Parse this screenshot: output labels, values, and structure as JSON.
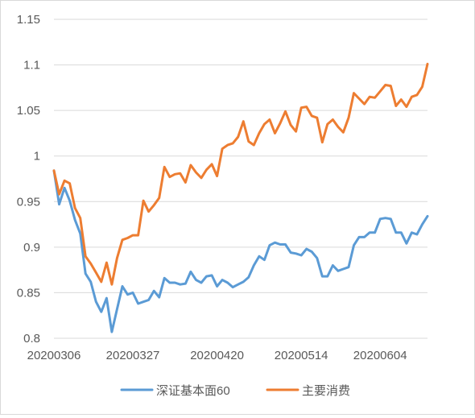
{
  "chart_data": {
    "type": "line",
    "title": "",
    "xlabel": "",
    "ylabel": "",
    "ylim": [
      0.8,
      1.15
    ],
    "y_ticks": [
      "0.8",
      "0.85",
      "0.9",
      "0.95",
      "1",
      "1.05",
      "1.1",
      "1.15"
    ],
    "x_tick_labels": [
      "20200306",
      "20200327",
      "20200420",
      "20200514",
      "20200604"
    ],
    "x_tick_indices": [
      0,
      15,
      31,
      47,
      62
    ],
    "grid": "horizontal",
    "legend_position": "bottom",
    "series": [
      {
        "name": "深证基本面60",
        "color": "#5B9BD5",
        "values": [
          0.984,
          0.947,
          0.965,
          0.951,
          0.93,
          0.915,
          0.871,
          0.862,
          0.84,
          0.829,
          0.844,
          0.807,
          0.832,
          0.857,
          0.848,
          0.85,
          0.838,
          0.84,
          0.842,
          0.852,
          0.845,
          0.866,
          0.861,
          0.861,
          0.859,
          0.86,
          0.873,
          0.864,
          0.861,
          0.868,
          0.869,
          0.857,
          0.864,
          0.861,
          0.856,
          0.859,
          0.862,
          0.867,
          0.88,
          0.89,
          0.886,
          0.902,
          0.905,
          0.903,
          0.903,
          0.894,
          0.893,
          0.891,
          0.898,
          0.895,
          0.888,
          0.868,
          0.868,
          0.88,
          0.874,
          0.876,
          0.878,
          0.902,
          0.911,
          0.911,
          0.916,
          0.916,
          0.931,
          0.932,
          0.931,
          0.916,
          0.916,
          0.904,
          0.916,
          0.914,
          0.925,
          0.934
        ]
      },
      {
        "name": "主要消费",
        "color": "#ED7D31",
        "values": [
          0.984,
          0.958,
          0.973,
          0.97,
          0.943,
          0.932,
          0.89,
          0.882,
          0.872,
          0.862,
          0.883,
          0.859,
          0.888,
          0.908,
          0.91,
          0.913,
          0.913,
          0.951,
          0.939,
          0.946,
          0.954,
          0.988,
          0.977,
          0.98,
          0.981,
          0.971,
          0.99,
          0.982,
          0.976,
          0.985,
          0.991,
          0.978,
          1.008,
          1.012,
          1.014,
          1.021,
          1.038,
          1.016,
          1.012,
          1.025,
          1.035,
          1.04,
          1.025,
          1.036,
          1.049,
          1.034,
          1.027,
          1.053,
          1.054,
          1.044,
          1.042,
          1.015,
          1.035,
          1.04,
          1.032,
          1.026,
          1.042,
          1.069,
          1.063,
          1.057,
          1.065,
          1.064,
          1.071,
          1.078,
          1.077,
          1.055,
          1.062,
          1.054,
          1.065,
          1.067,
          1.076,
          1.101
        ]
      }
    ]
  }
}
